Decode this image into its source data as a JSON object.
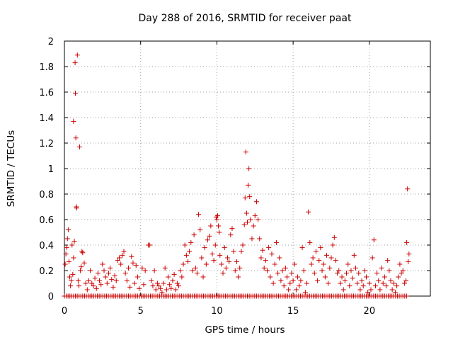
{
  "chart_data": {
    "type": "scatter",
    "title": "Day 288 of 2016, SRMTID for receiver paat",
    "xlabel": "GPS time / hours",
    "ylabel": "SRMTID / TECUs",
    "xlim": [
      0,
      24
    ],
    "ylim": [
      0,
      2
    ],
    "xticks": [
      0,
      5,
      10,
      15,
      20
    ],
    "xtick_labels": [
      "0",
      "5",
      "10",
      "15",
      "20"
    ],
    "yticks": [
      0,
      0.2,
      0.4,
      0.6,
      0.8,
      1,
      1.2,
      1.4,
      1.6,
      1.8,
      2
    ],
    "ytick_labels": [
      "0",
      "0.2",
      "0.4",
      "0.6",
      "0.8",
      "1",
      "1.2",
      "1.4",
      "1.6",
      "1.8",
      "2"
    ],
    "grid": true,
    "marker": "plus",
    "color": "#cc0000",
    "series": [
      {
        "name": "SRMTID",
        "points": [
          [
            0.05,
            0.25
          ],
          [
            0.1,
            0.33
          ],
          [
            0.15,
            0.38
          ],
          [
            0.2,
            0.45
          ],
          [
            0.25,
            0.52
          ],
          [
            0.3,
            0.27
          ],
          [
            0.35,
            0.15
          ],
          [
            0.4,
            0.08
          ],
          [
            0.45,
            0.12
          ],
          [
            0.5,
            0.4
          ],
          [
            0.55,
            0.17
          ],
          [
            0.6,
            0.3
          ],
          [
            0.6,
            1.37
          ],
          [
            0.65,
            0.43
          ],
          [
            0.7,
            1.83
          ],
          [
            0.72,
            1.59
          ],
          [
            0.75,
            1.24
          ],
          [
            0.78,
            0.7
          ],
          [
            0.8,
            0.69
          ],
          [
            0.85,
            1.89
          ],
          [
            0.9,
            0.12
          ],
          [
            0.95,
            0.08
          ],
          [
            1.0,
            1.17
          ],
          [
            1.05,
            0.2
          ],
          [
            1.1,
            0.23
          ],
          [
            1.15,
            0.35
          ],
          [
            1.2,
            0.34
          ],
          [
            1.3,
            0.26
          ],
          [
            1.4,
            0.1
          ],
          [
            1.5,
            0.05
          ],
          [
            1.6,
            0.12
          ],
          [
            1.7,
            0.2
          ],
          [
            1.8,
            0.1
          ],
          [
            1.9,
            0.08
          ],
          [
            2.0,
            0.14
          ],
          [
            2.1,
            0.06
          ],
          [
            2.2,
            0.18
          ],
          [
            2.3,
            0.12
          ],
          [
            2.4,
            0.09
          ],
          [
            2.5,
            0.25
          ],
          [
            2.6,
            0.2
          ],
          [
            2.7,
            0.15
          ],
          [
            2.8,
            0.1
          ],
          [
            2.9,
            0.18
          ],
          [
            3.0,
            0.22
          ],
          [
            3.1,
            0.13
          ],
          [
            3.2,
            0.07
          ],
          [
            3.3,
            0.16
          ],
          [
            3.4,
            0.12
          ],
          [
            3.5,
            0.28
          ],
          [
            3.6,
            0.3
          ],
          [
            3.7,
            0.25
          ],
          [
            3.8,
            0.32
          ],
          [
            3.9,
            0.35
          ],
          [
            4.0,
            0.18
          ],
          [
            4.1,
            0.12
          ],
          [
            4.2,
            0.22
          ],
          [
            4.3,
            0.07
          ],
          [
            4.4,
            0.31
          ],
          [
            4.5,
            0.26
          ],
          [
            4.6,
            0.1
          ],
          [
            4.7,
            0.24
          ],
          [
            4.8,
            0.15
          ],
          [
            4.9,
            0.06
          ],
          [
            5.1,
            0.22
          ],
          [
            5.2,
            0.09
          ],
          [
            5.3,
            0.2
          ],
          [
            5.5,
            0.4
          ],
          [
            5.6,
            0.4
          ],
          [
            5.7,
            0.12
          ],
          [
            5.8,
            0.08
          ],
          [
            5.9,
            0.2
          ],
          [
            6.0,
            0.05
          ],
          [
            6.1,
            0.1
          ],
          [
            6.2,
            0.08
          ],
          [
            6.3,
            0.06
          ],
          [
            6.4,
            0.03
          ],
          [
            6.5,
            0.1
          ],
          [
            6.6,
            0.22
          ],
          [
            6.7,
            0.05
          ],
          [
            6.8,
            0.15
          ],
          [
            6.9,
            0.09
          ],
          [
            7.0,
            0.06
          ],
          [
            7.1,
            0.12
          ],
          [
            7.2,
            0.17
          ],
          [
            7.3,
            0.05
          ],
          [
            7.4,
            0.1
          ],
          [
            7.5,
            0.08
          ],
          [
            7.6,
            0.2
          ],
          [
            7.7,
            0.15
          ],
          [
            7.8,
            0.25
          ],
          [
            7.9,
            0.4
          ],
          [
            8.0,
            0.32
          ],
          [
            8.1,
            0.27
          ],
          [
            8.2,
            0.35
          ],
          [
            8.3,
            0.42
          ],
          [
            8.4,
            0.2
          ],
          [
            8.5,
            0.48
          ],
          [
            8.6,
            0.22
          ],
          [
            8.7,
            0.18
          ],
          [
            8.8,
            0.64
          ],
          [
            8.9,
            0.52
          ],
          [
            9.0,
            0.3
          ],
          [
            9.1,
            0.15
          ],
          [
            9.2,
            0.38
          ],
          [
            9.3,
            0.25
          ],
          [
            9.4,
            0.44
          ],
          [
            9.5,
            0.47
          ],
          [
            9.6,
            0.55
          ],
          [
            9.7,
            0.33
          ],
          [
            9.8,
            0.28
          ],
          [
            9.9,
            0.4
          ],
          [
            9.95,
            0.62
          ],
          [
            10.0,
            0.6
          ],
          [
            10.05,
            0.63
          ],
          [
            10.1,
            0.55
          ],
          [
            10.15,
            0.5
          ],
          [
            10.2,
            0.32
          ],
          [
            10.3,
            0.25
          ],
          [
            10.4,
            0.18
          ],
          [
            10.5,
            0.38
          ],
          [
            10.6,
            0.22
          ],
          [
            10.7,
            0.3
          ],
          [
            10.8,
            0.27
          ],
          [
            10.9,
            0.48
          ],
          [
            11.0,
            0.53
          ],
          [
            11.1,
            0.35
          ],
          [
            11.2,
            0.2
          ],
          [
            11.3,
            0.27
          ],
          [
            11.4,
            0.15
          ],
          [
            11.5,
            0.22
          ],
          [
            11.6,
            0.35
          ],
          [
            11.7,
            0.4
          ],
          [
            11.8,
            0.56
          ],
          [
            11.85,
            0.77
          ],
          [
            11.9,
            1.13
          ],
          [
            11.95,
            0.65
          ],
          [
            12.0,
            0.58
          ],
          [
            12.05,
            0.87
          ],
          [
            12.1,
            1.0
          ],
          [
            12.15,
            0.78
          ],
          [
            12.2,
            0.6
          ],
          [
            12.3,
            0.45
          ],
          [
            12.4,
            0.55
          ],
          [
            12.5,
            0.63
          ],
          [
            12.6,
            0.74
          ],
          [
            12.7,
            0.6
          ],
          [
            12.8,
            0.45
          ],
          [
            12.9,
            0.3
          ],
          [
            13.0,
            0.36
          ],
          [
            13.1,
            0.22
          ],
          [
            13.2,
            0.28
          ],
          [
            13.3,
            0.2
          ],
          [
            13.4,
            0.38
          ],
          [
            13.5,
            0.15
          ],
          [
            13.6,
            0.33
          ],
          [
            13.7,
            0.1
          ],
          [
            13.8,
            0.25
          ],
          [
            13.9,
            0.42
          ],
          [
            14.0,
            0.18
          ],
          [
            14.1,
            0.3
          ],
          [
            14.2,
            0.12
          ],
          [
            14.3,
            0.2
          ],
          [
            14.4,
            0.08
          ],
          [
            14.5,
            0.22
          ],
          [
            14.6,
            0.15
          ],
          [
            14.7,
            0.05
          ],
          [
            14.8,
            0.1
          ],
          [
            14.9,
            0.18
          ],
          [
            15.0,
            0.12
          ],
          [
            15.1,
            0.25
          ],
          [
            15.2,
            0.05
          ],
          [
            15.3,
            0.15
          ],
          [
            15.4,
            0.08
          ],
          [
            15.5,
            0.12
          ],
          [
            15.6,
            0.38
          ],
          [
            15.7,
            0.2
          ],
          [
            15.8,
            0.03
          ],
          [
            15.9,
            0.1
          ],
          [
            16.0,
            0.66
          ],
          [
            16.1,
            0.42
          ],
          [
            16.2,
            0.25
          ],
          [
            16.3,
            0.3
          ],
          [
            16.4,
            0.18
          ],
          [
            16.5,
            0.35
          ],
          [
            16.6,
            0.12
          ],
          [
            16.7,
            0.28
          ],
          [
            16.8,
            0.38
          ],
          [
            16.9,
            0.2
          ],
          [
            17.0,
            0.25
          ],
          [
            17.1,
            0.15
          ],
          [
            17.2,
            0.32
          ],
          [
            17.3,
            0.1
          ],
          [
            17.4,
            0.22
          ],
          [
            17.5,
            0.3
          ],
          [
            17.6,
            0.4
          ],
          [
            17.7,
            0.46
          ],
          [
            17.8,
            0.28
          ],
          [
            17.9,
            0.18
          ],
          [
            18.0,
            0.2
          ],
          [
            18.1,
            0.1
          ],
          [
            18.2,
            0.15
          ],
          [
            18.3,
            0.05
          ],
          [
            18.4,
            0.12
          ],
          [
            18.5,
            0.18
          ],
          [
            18.6,
            0.25
          ],
          [
            18.7,
            0.08
          ],
          [
            18.8,
            0.2
          ],
          [
            18.9,
            0.14
          ],
          [
            19.0,
            0.32
          ],
          [
            19.1,
            0.22
          ],
          [
            19.2,
            0.1
          ],
          [
            19.3,
            0.18
          ],
          [
            19.4,
            0.05
          ],
          [
            19.5,
            0.12
          ],
          [
            19.6,
            0.08
          ],
          [
            19.7,
            0.2
          ],
          [
            19.8,
            0.15
          ],
          [
            19.9,
            0.03
          ],
          [
            20.0,
            0.1
          ],
          [
            20.1,
            0.05
          ],
          [
            20.2,
            0.3
          ],
          [
            20.3,
            0.44
          ],
          [
            20.4,
            0.08
          ],
          [
            20.5,
            0.18
          ],
          [
            20.6,
            0.12
          ],
          [
            20.7,
            0.05
          ],
          [
            20.8,
            0.22
          ],
          [
            20.9,
            0.1
          ],
          [
            21.0,
            0.15
          ],
          [
            21.1,
            0.08
          ],
          [
            21.2,
            0.28
          ],
          [
            21.3,
            0.2
          ],
          [
            21.4,
            0.12
          ],
          [
            21.5,
            0.05
          ],
          [
            21.6,
            0.1
          ],
          [
            21.7,
            0.03
          ],
          [
            21.8,
            0.08
          ],
          [
            21.9,
            0.15
          ],
          [
            22.0,
            0.25
          ],
          [
            22.1,
            0.18
          ],
          [
            22.2,
            0.2
          ],
          [
            22.3,
            0.1
          ],
          [
            22.4,
            0.12
          ],
          [
            22.45,
            0.42
          ],
          [
            22.5,
            0.84
          ],
          [
            22.55,
            0.27
          ],
          [
            22.6,
            0.33
          ]
        ]
      }
    ],
    "baseline_band": {
      "x_start": 0,
      "x_end": 22.5,
      "y": 0,
      "step": 0.12
    }
  }
}
